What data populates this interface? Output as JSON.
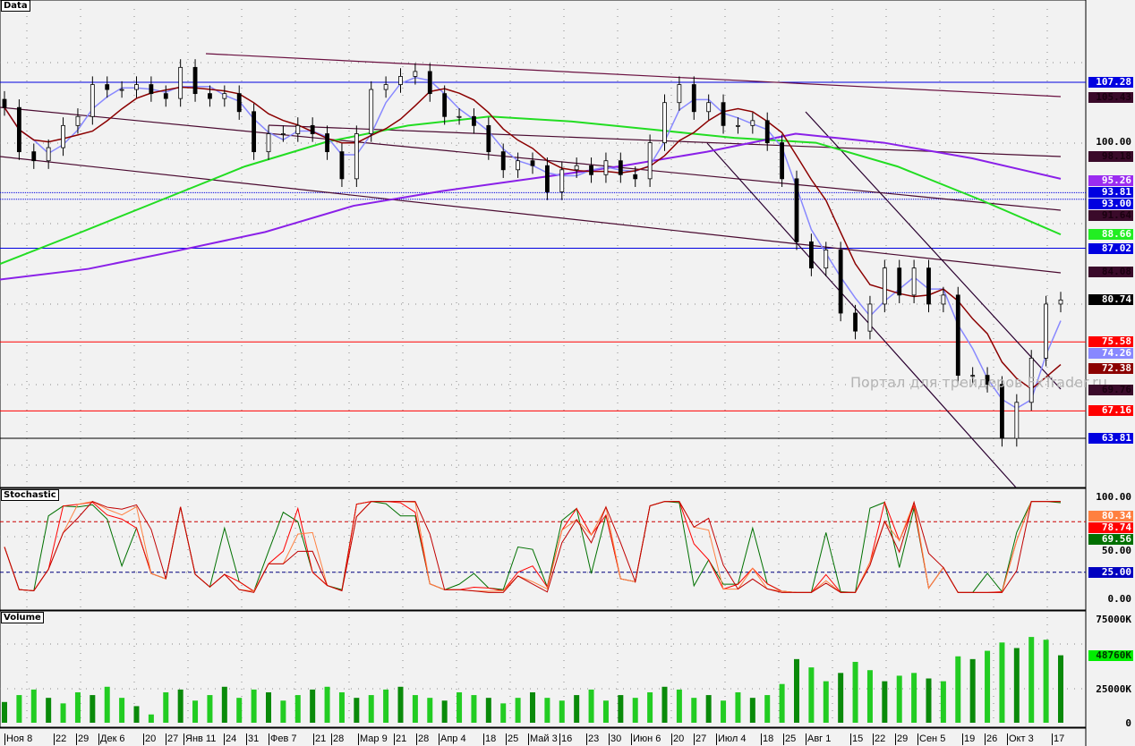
{
  "panels": {
    "data": "Data",
    "stochastic": "Stochastic",
    "volume": "Volume"
  },
  "watermark": "Портал для трейдеров FxTrader.ru",
  "price_axis": {
    "ticks": [
      "100.00"
    ],
    "ylim": [
      56,
      116
    ]
  },
  "price_tags": [
    {
      "text": "107.28",
      "bg": "#0000e0",
      "fg": "#ffffff"
    },
    {
      "text": "105.43",
      "bg": "#3a0a2a",
      "fg": "#1a0010"
    },
    {
      "text": "98.18",
      "bg": "#3a0a2a",
      "fg": "#1a0010"
    },
    {
      "text": "95.26",
      "bg": "#9b2cf0",
      "fg": "#ffffff"
    },
    {
      "text": "93.81",
      "bg": "#0000e0",
      "fg": "#ffffff"
    },
    {
      "text": "93.00",
      "bg": "#0000e0",
      "fg": "#ffffff"
    },
    {
      "text": "91.64",
      "bg": "#3a0a2a",
      "fg": "#1a0010"
    },
    {
      "text": "88.66",
      "bg": "#22ee22",
      "fg": "#ffffff"
    },
    {
      "text": "87.02",
      "bg": "#0000e0",
      "fg": "#ffffff"
    },
    {
      "text": "84.08",
      "bg": "#3a0a2a",
      "fg": "#1a0010"
    },
    {
      "text": "80.74",
      "bg": "#000000",
      "fg": "#ffffff"
    },
    {
      "text": "75.58",
      "bg": "#ff0000",
      "fg": "#ffffff"
    },
    {
      "text": "74.26",
      "bg": "#8888ff",
      "fg": "#ffffff"
    },
    {
      "text": "72.38",
      "bg": "#8b0000",
      "fg": "#ffffff"
    },
    {
      "text": "69.76",
      "bg": "#3a0a2a",
      "fg": "#1a0010"
    },
    {
      "text": "67.16",
      "bg": "#ff0000",
      "fg": "#ffffff"
    },
    {
      "text": "63.81",
      "bg": "#0000e0",
      "fg": "#ffffff"
    }
  ],
  "horizontal_levels": [
    {
      "value": 107.28,
      "color": "#0000e0"
    },
    {
      "value": 87.02,
      "color": "#0000e0"
    },
    {
      "value": 93.81,
      "color": "#0000e0",
      "dotted": true
    },
    {
      "value": 93.0,
      "color": "#0000e0",
      "dotted": true
    },
    {
      "value": 75.58,
      "color": "#ff0000"
    },
    {
      "value": 67.16,
      "color": "#ff0000"
    },
    {
      "value": 63.81,
      "color": "#000000"
    }
  ],
  "stochastic_axis": {
    "ticks": [
      "100.00",
      "50.00",
      "0.00"
    ],
    "tags": [
      {
        "text": "80.34",
        "bg": "#ff8040",
        "fg": "#ffffff"
      },
      {
        "text": "78.74",
        "bg": "#ff0000",
        "fg": "#ffffff"
      },
      {
        "text": "69.56",
        "bg": "#007000",
        "fg": "#ffffff"
      },
      {
        "text": "25.00",
        "bg": "#0000c0",
        "fg": "#ffffff"
      }
    ],
    "levels": [
      75,
      25
    ]
  },
  "volume_axis": {
    "ticks": [
      "75000K",
      "25000K",
      "0"
    ],
    "tag": {
      "text": "48760K",
      "bg": "#00ee00",
      "fg": "#003000"
    }
  },
  "x_labels": [
    "Ноя 8",
    "22",
    "29",
    "Дек 6",
    "20",
    "27",
    "Янв 11",
    "24",
    "31",
    "Фев 7",
    "21",
    "28",
    "Мар 9",
    "21",
    "28",
    "Апр 4",
    "18",
    "25",
    "Май 3",
    "16",
    "23",
    "30",
    "Июн 6",
    "20",
    "27",
    "Июл 4",
    "18",
    "25",
    "Авг 1",
    "15",
    "22",
    "29",
    "Сен 5",
    "19",
    "26",
    "Окт 3",
    "17"
  ],
  "chart_data": {
    "type": "candlestick",
    "close": [
      104.2,
      98.8,
      97.7,
      99.3,
      102.0,
      103.1,
      107.0,
      106.4,
      106.4,
      107.0,
      105.9,
      105.3,
      109.1,
      105.9,
      105.3,
      105.9,
      103.7,
      98.8,
      101.0,
      101.0,
      102.0,
      101.0,
      98.8,
      95.5,
      101.0,
      106.4,
      107.0,
      108.0,
      108.6,
      105.9,
      103.1,
      103.1,
      102.0,
      98.8,
      96.6,
      97.7,
      97.1,
      93.9,
      96.6,
      97.1,
      96.0,
      97.7,
      96.0,
      95.5,
      99.9,
      104.8,
      107.0,
      103.7,
      104.8,
      102.0,
      102.0,
      102.6,
      99.9,
      95.5,
      87.8,
      84.6,
      86.8,
      79.1,
      76.9,
      80.2,
      84.6,
      81.3,
      84.6,
      80.2,
      81.3,
      71.5,
      71.5,
      70.4,
      63.8,
      68.2,
      73.6,
      80.2,
      80.7
    ],
    "volume_k": [
      15000,
      20000,
      24000,
      18000,
      14000,
      22000,
      20000,
      26000,
      18000,
      12000,
      6000,
      22000,
      24000,
      16000,
      20000,
      26000,
      18000,
      24000,
      22000,
      16000,
      20000,
      24000,
      26000,
      22000,
      18000,
      20000,
      24000,
      26000,
      20000,
      18000,
      16000,
      22000,
      20000,
      18000,
      14000,
      18000,
      22000,
      18000,
      16000,
      20000,
      24000,
      16000,
      20000,
      18000,
      22000,
      26000,
      24000,
      18000,
      20000,
      16000,
      22000,
      18000,
      20000,
      28000,
      46000,
      40000,
      30000,
      36000,
      44000,
      38000,
      30000,
      34000,
      36000,
      32000,
      30000,
      48000,
      46000,
      52000,
      58000,
      54000,
      62000,
      60000,
      48760
    ],
    "ma_green": [
      85.1,
      89,
      93,
      97,
      100,
      102,
      103.1,
      102.5,
      101.5,
      100.5,
      99.9,
      97,
      93,
      88.7
    ],
    "ma_purple": [
      83.2,
      84.5,
      86.7,
      89,
      92.2,
      94,
      95.5,
      97,
      98.8,
      101,
      99.9,
      98,
      95.5
    ]
  }
}
